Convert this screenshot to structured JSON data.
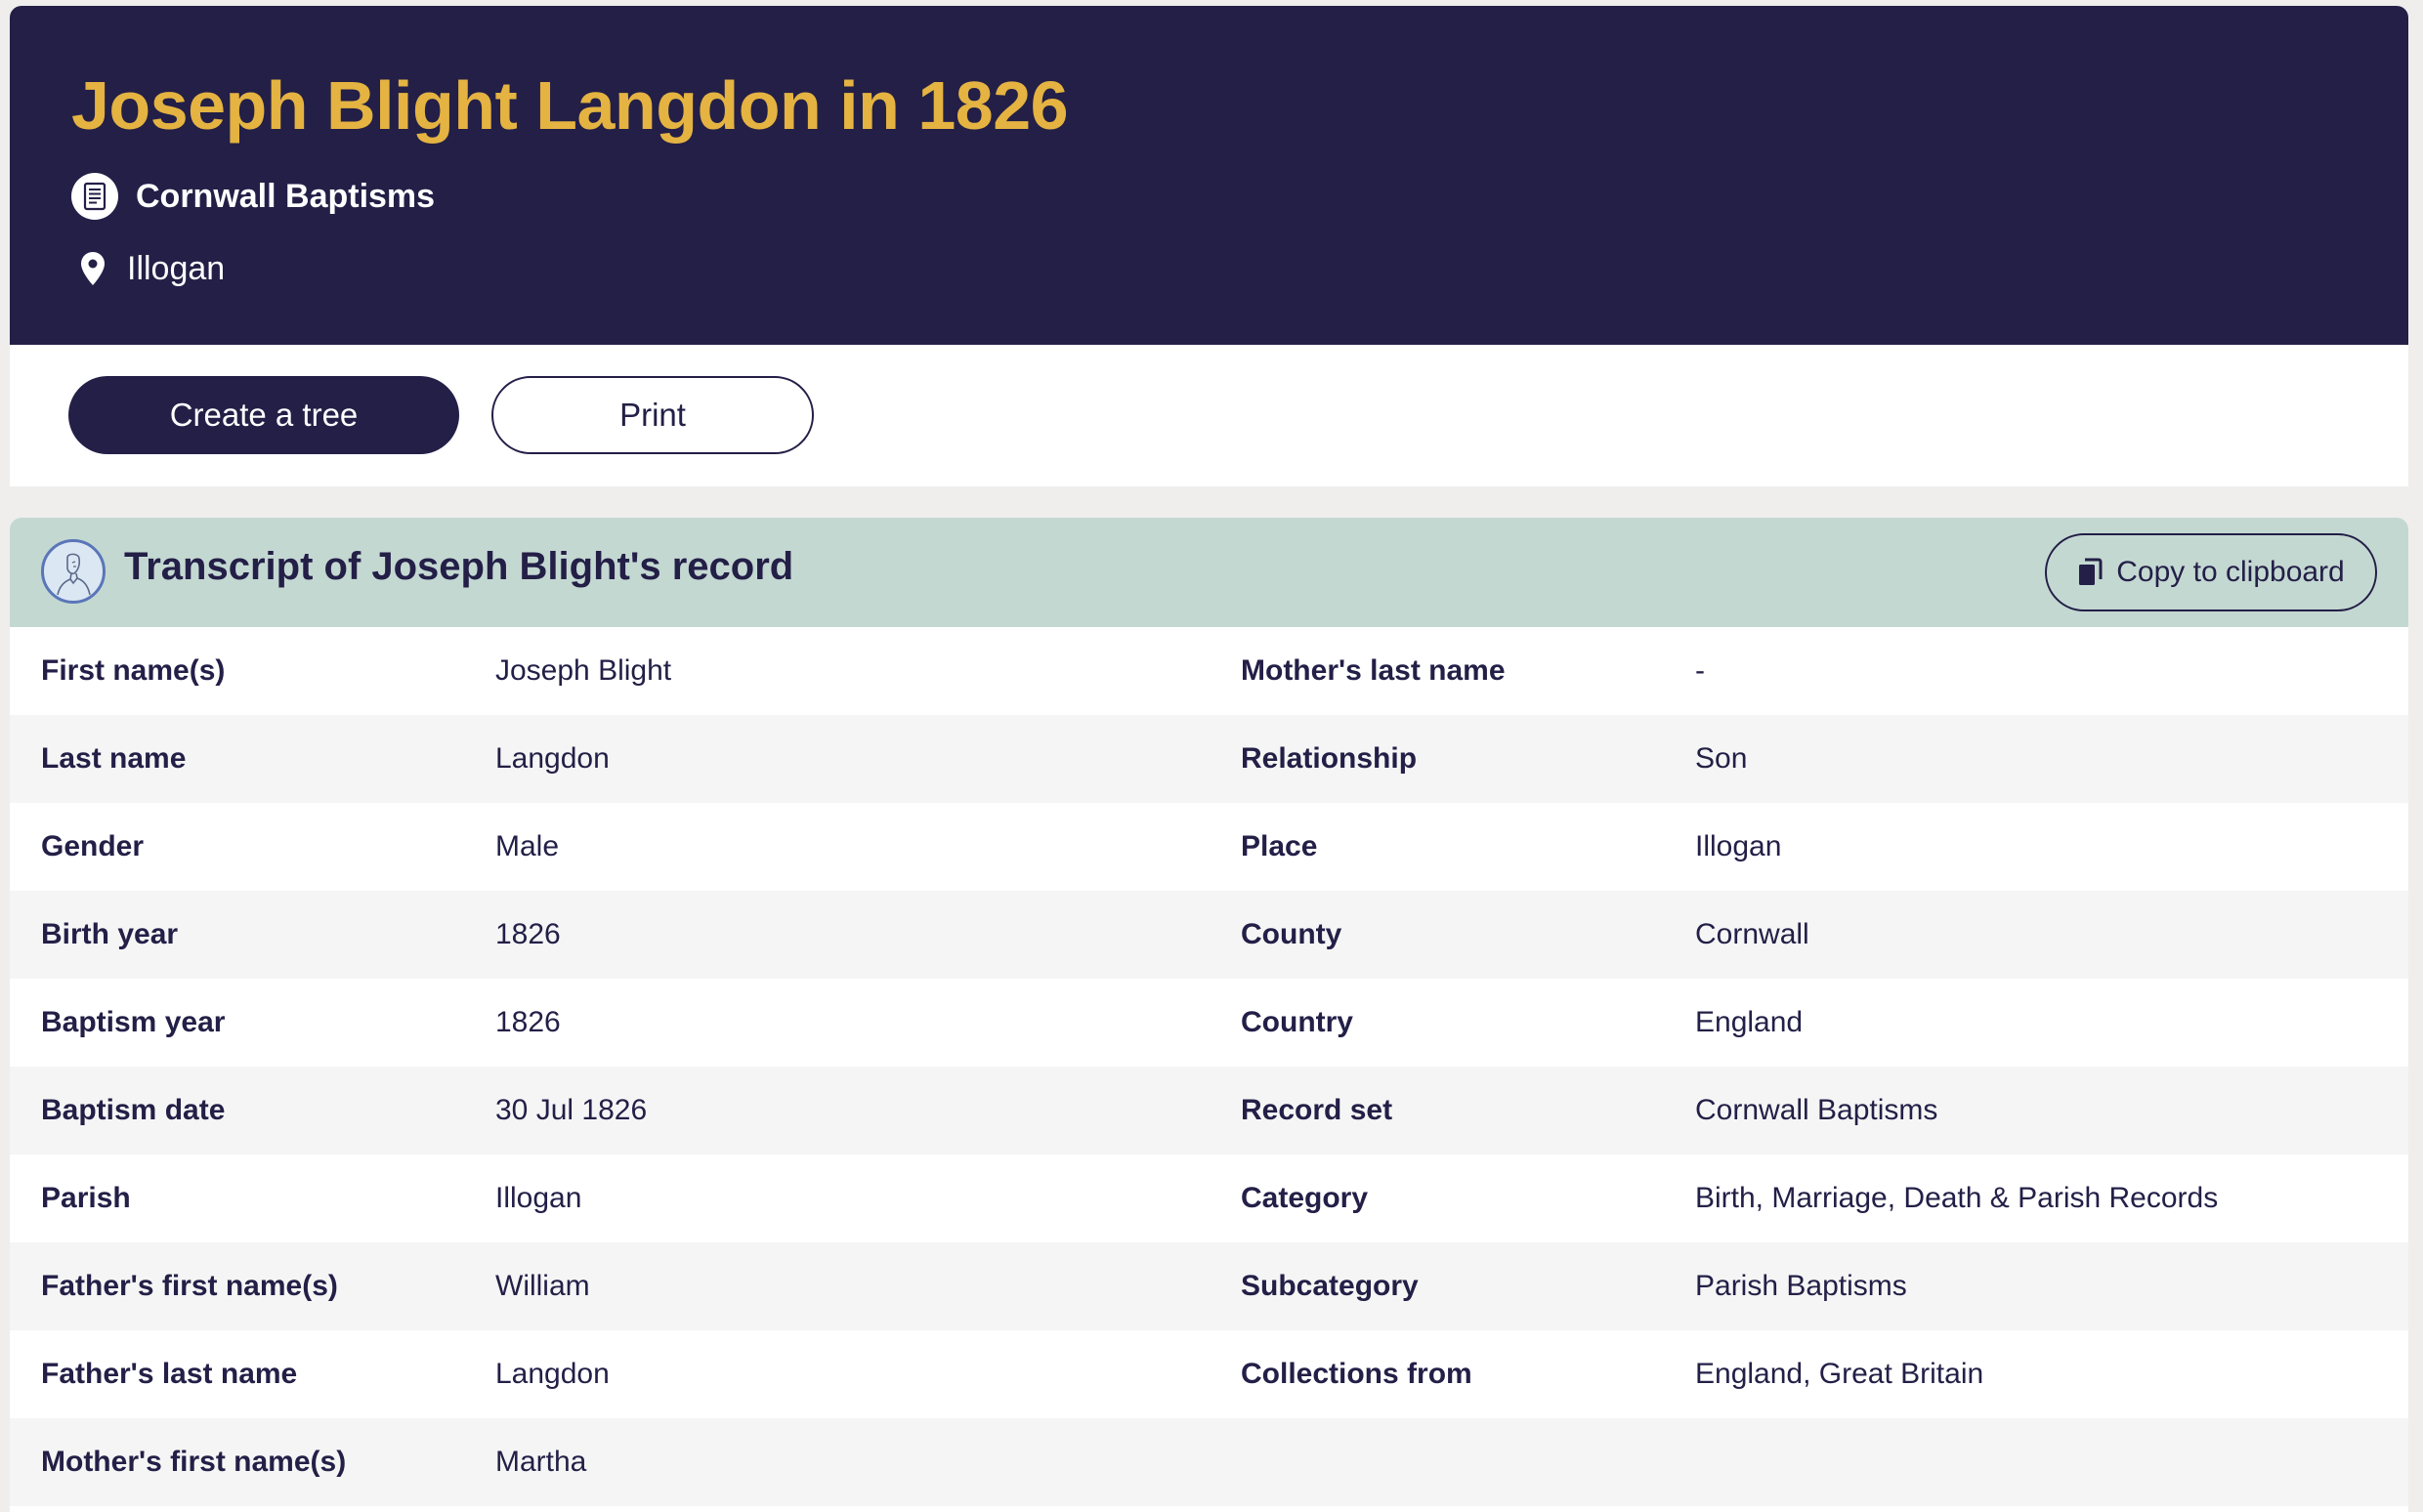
{
  "header": {
    "title": "Joseph Blight Langdon in 1826",
    "collection": "Cornwall Baptisms",
    "place": "Illogan"
  },
  "actions": {
    "create_tree_label": "Create a tree",
    "print_label": "Print"
  },
  "transcript": {
    "title": "Transcript of Joseph Blight's record",
    "copy_label": "Copy to clipboard",
    "rows": [
      {
        "l1": "First name(s)",
        "v1": "Joseph Blight",
        "l2": "Mother's last name",
        "v2": "-"
      },
      {
        "l1": "Last name",
        "v1": "Langdon",
        "l2": "Relationship",
        "v2": "Son"
      },
      {
        "l1": "Gender",
        "v1": "Male",
        "l2": "Place",
        "v2": "Illogan"
      },
      {
        "l1": "Birth year",
        "v1": "1826",
        "l2": "County",
        "v2": "Cornwall"
      },
      {
        "l1": "Baptism year",
        "v1": "1826",
        "l2": "Country",
        "v2": "England"
      },
      {
        "l1": "Baptism date",
        "v1": "30 Jul 1826",
        "l2": "Record set",
        "v2": "Cornwall Baptisms"
      },
      {
        "l1": "Parish",
        "v1": "Illogan",
        "l2": "Category",
        "v2": "Birth, Marriage, Death & Parish Records"
      },
      {
        "l1": "Father's first name(s)",
        "v1": "William",
        "l2": "Subcategory",
        "v2": "Parish Baptisms"
      },
      {
        "l1": "Father's last name",
        "v1": "Langdon",
        "l2": "Collections from",
        "v2": "England, Great Britain"
      },
      {
        "l1": "Mother's first name(s)",
        "v1": "Martha",
        "l2": "",
        "v2": ""
      }
    ]
  },
  "icons": {
    "collection": "document-icon",
    "place": "map-pin-icon",
    "avatar": "person-sketch-icon",
    "copy": "copy-icon"
  },
  "colors": {
    "header_bg": "#231f47",
    "title_gold": "#e4b341",
    "transcript_header_bg": "#c4d8d2",
    "page_bg": "#efeeec"
  }
}
